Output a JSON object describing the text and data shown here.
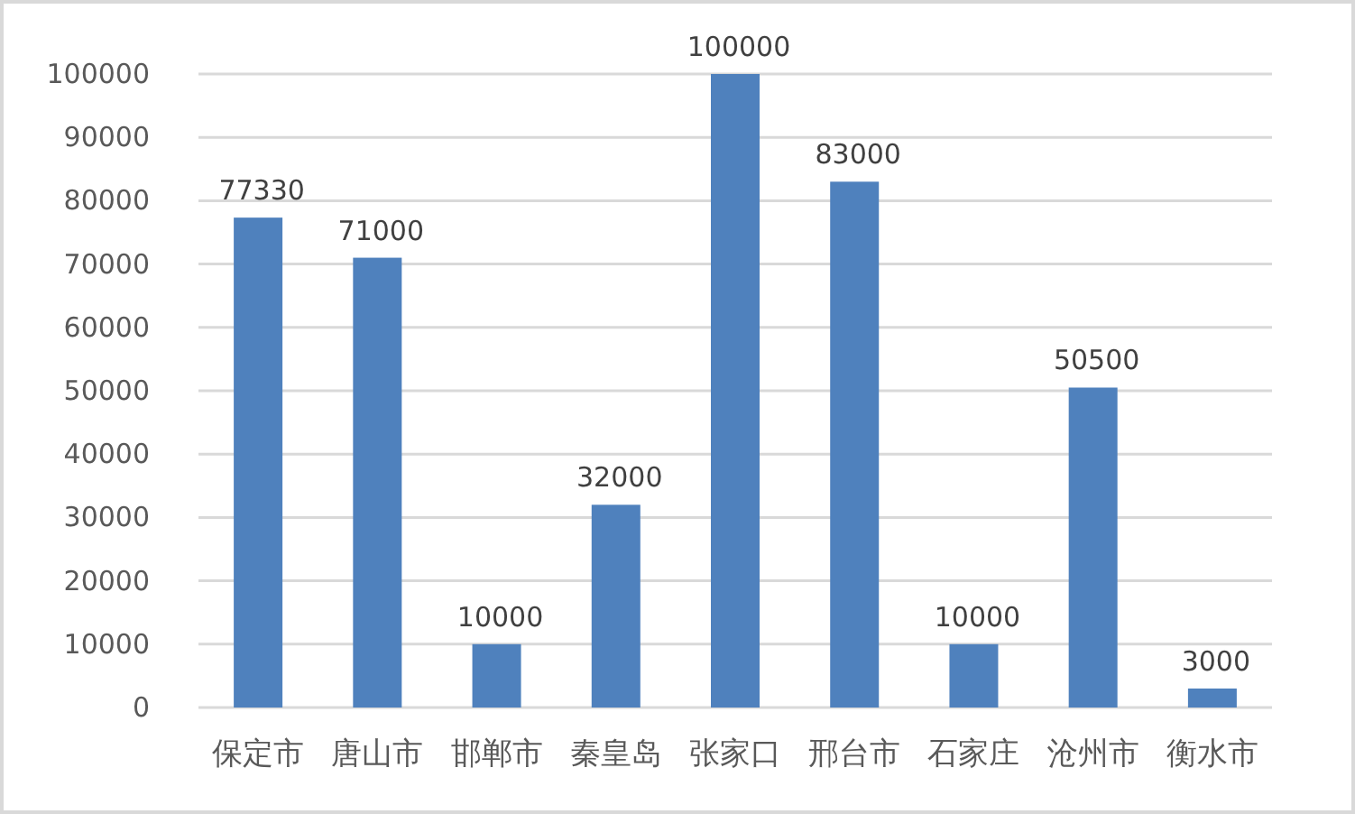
{
  "chart_data": {
    "type": "bar",
    "categories": [
      "保定市",
      "唐山市",
      "邯郸市",
      "秦皇岛",
      "张家口",
      "邢台市",
      "石家庄",
      "沧州市",
      "衡水市"
    ],
    "values": [
      77330,
      71000,
      10000,
      32000,
      100000,
      83000,
      10000,
      50500,
      3000
    ],
    "color": "#4f81bd",
    "ylim": [
      0,
      100000
    ],
    "yticks": [
      0,
      10000,
      20000,
      30000,
      40000,
      50000,
      60000,
      70000,
      80000,
      90000,
      100000
    ],
    "grid": "y",
    "data_labels": true
  }
}
